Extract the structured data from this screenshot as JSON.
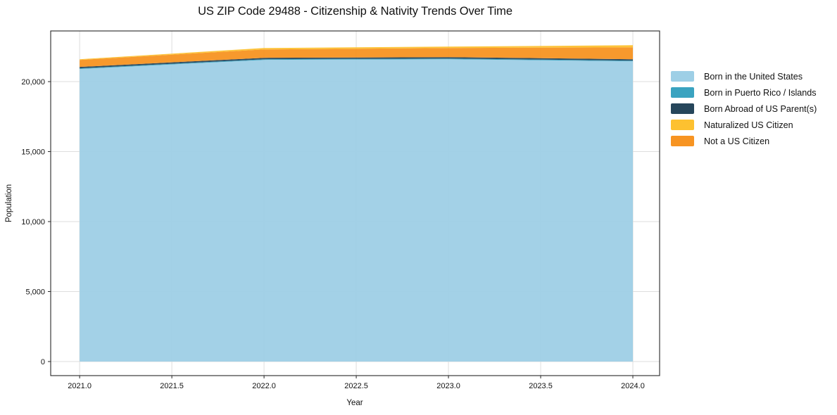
{
  "chart_data": {
    "type": "area",
    "stacked": true,
    "title": "US ZIP Code 29488 - Citizenship & Nativity Trends Over Time",
    "xlabel": "Year",
    "ylabel": "Population",
    "x": [
      2021,
      2022,
      2023,
      2024
    ],
    "series": [
      {
        "name": "Born in the United States",
        "color": "#9ecfe6",
        "values": [
          20900,
          21550,
          21600,
          21450
        ]
      },
      {
        "name": "Born in Puerto Rico / Islands",
        "color": "#3aa3c0",
        "values": [
          50,
          50,
          50,
          50
        ]
      },
      {
        "name": "Born Abroad of US Parent(s)",
        "color": "#26465b",
        "values": [
          100,
          100,
          100,
          100
        ]
      },
      {
        "name": "Naturalized US Citizen",
        "color": "#fdc130",
        "values": [
          50,
          100,
          100,
          150
        ]
      },
      {
        "name": "Not a US Citizen",
        "color": "#f79422",
        "values": [
          500,
          600,
          650,
          850
        ]
      }
    ],
    "stack_order_bottom_to_top": [
      "Born in the United States",
      "Born in Puerto Rico / Islands",
      "Born Abroad of US Parent(s)",
      "Not a US Citizen",
      "Naturalized US Citizen"
    ],
    "x_tick_values": [
      2021.0,
      2021.5,
      2022.0,
      2022.5,
      2023.0,
      2023.5,
      2024.0
    ],
    "x_ticks": [
      "2021.0",
      "2021.5",
      "2022.0",
      "2022.5",
      "2023.0",
      "2023.5",
      "2024.0"
    ],
    "y_tick_values": [
      0,
      5000,
      10000,
      15000,
      20000
    ],
    "y_ticks": [
      "0",
      "5,000",
      "10,000",
      "15,000",
      "20,000"
    ],
    "xlim": [
      2020.843,
      2024.145
    ],
    "ylim": [
      -1005,
      23620
    ],
    "grid": true,
    "grid_color": "#dedede",
    "spine_color": "#262626",
    "legend_position": "outside-right",
    "legend_frame": false
  }
}
